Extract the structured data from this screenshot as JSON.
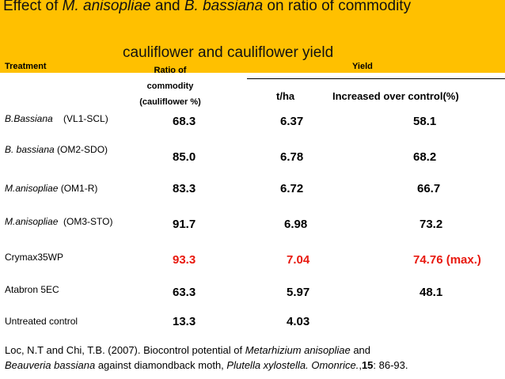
{
  "title": {
    "prefix": "Effect of ",
    "species1": "M. anisopliae",
    "middle": " and ",
    "species2": "B. bassiana",
    "suffix": " on ratio of commodity",
    "line2": "cauliflower and cauliflower yield"
  },
  "headers": {
    "treatment": "Treatment",
    "ratio_line1": "Ratio of",
    "ratio_line2": "commodity",
    "ratio_line3": "(cauliflower %)",
    "yield": "Yield",
    "tha": "t/ha",
    "increased": "Increased over control(%)"
  },
  "rows": [
    {
      "name_italic": "B.Bassiana",
      "name_plain": "    (VL1-SCL)",
      "ratio": "68.3",
      "tha": "6.37",
      "increase": "58.1",
      "highlight": false
    },
    {
      "name_italic": "B. bassiana",
      "name_plain": " (OM2-SDO)",
      "ratio": "85.0",
      "tha": "6.78",
      "increase": "68.2",
      "highlight": false
    },
    {
      "name_italic": "M.anisopliae",
      "name_plain": " (OM1-R)",
      "ratio": "83.3",
      "tha": "6.72",
      "increase": "66.7",
      "highlight": false
    },
    {
      "name_italic": "M.anisopliae",
      "name_plain": "  (OM3-STO)",
      "ratio": "91.7",
      "tha": "6.98",
      "increase": "73.2",
      "highlight": false
    },
    {
      "name_italic": "",
      "name_plain": "Crymax35WP",
      "ratio": "93.3",
      "tha": "7.04",
      "increase": "74.76 (max.)",
      "highlight": true
    },
    {
      "name_italic": "",
      "name_plain": "Atabron 5EC",
      "ratio": "63.3",
      "tha": "5.97",
      "increase": "48.1",
      "highlight": false
    },
    {
      "name_italic": "",
      "name_plain": "Untreated control",
      "ratio": "13.3",
      "tha": "4.03",
      "increase": "",
      "highlight": false
    }
  ],
  "footnote": {
    "text1": "Loc, N.T and Chi, T.B. (2007). Biocontrol potential of ",
    "italic1": "Metarhizium anisopliae",
    "text2": " and",
    "italic2": "Beauveria bassiana",
    "text3": " against diamondback moth, ",
    "italic3": "Plutella xylostella. Omonrice.",
    "text4": ",",
    "bold": "15",
    "text5": ": 86-93."
  },
  "colors": {
    "banner": "#ffc000",
    "highlight": "#e8190f"
  }
}
